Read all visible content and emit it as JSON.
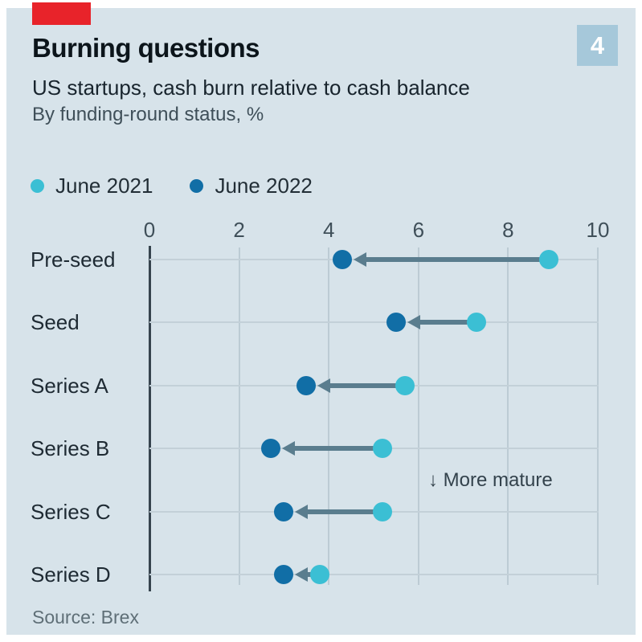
{
  "header": {
    "kicker_color": "#e8232a",
    "title": "Burning questions",
    "subtitle": "US startups, cash burn relative to cash balance",
    "subtitle2": "By funding-round status, %",
    "badge": "4",
    "badge_bg": "#a6c8da"
  },
  "legend": [
    {
      "label": "June 2021",
      "color": "#3bbfd4"
    },
    {
      "label": "June 2022",
      "color": "#116ea6"
    }
  ],
  "chart_data": {
    "type": "scatter",
    "subtype": "dumbbell-arrow",
    "title": "Burning questions",
    "subtitle": "US startups, cash burn relative to cash balance, by funding-round status, %",
    "categories": [
      "Pre-seed",
      "Seed",
      "Series A",
      "Series B",
      "Series C",
      "Series D"
    ],
    "series": [
      {
        "name": "June 2021",
        "color": "#3bbfd4",
        "values": [
          8.9,
          7.3,
          5.7,
          5.2,
          5.2,
          3.8
        ]
      },
      {
        "name": "June 2022",
        "color": "#116ea6",
        "values": [
          4.3,
          5.5,
          3.5,
          2.7,
          3.0,
          3.0
        ]
      }
    ],
    "xlim": [
      0,
      10
    ],
    "xticks": [
      0,
      2,
      4,
      6,
      8,
      10
    ],
    "grid": true,
    "legend_position": "top",
    "arrow_color": "#5a7d8e",
    "annotation": "↓ More mature",
    "panel_bg": "#d7e3ea"
  },
  "source": "Source: Brex"
}
